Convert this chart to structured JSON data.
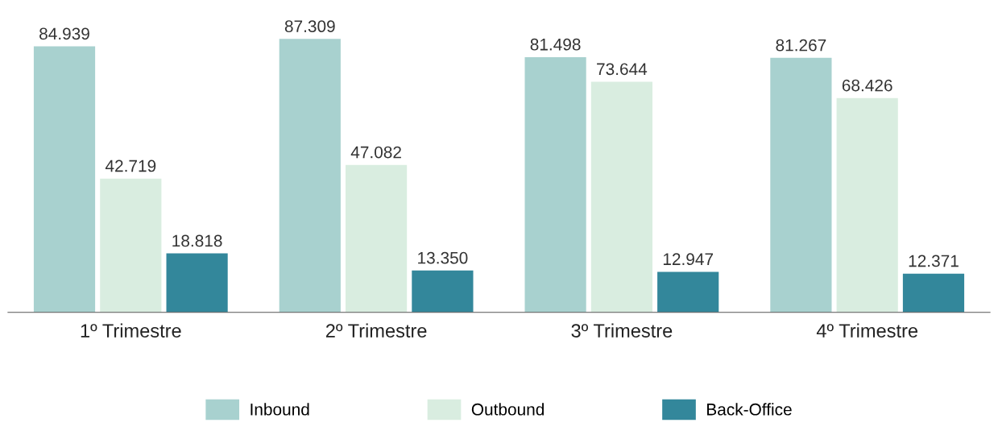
{
  "chart_data": {
    "type": "bar",
    "categories": [
      "1º Trimestre",
      "2º Trimestre",
      "3º Trimestre",
      "4º Trimestre"
    ],
    "series": [
      {
        "name": "Inbound",
        "color": "#a8d1cf",
        "values": [
          84939,
          87309,
          81498,
          81267
        ],
        "value_labels": [
          "84.939",
          "87.309",
          "81.498",
          "81.267"
        ]
      },
      {
        "name": "Outbound",
        "color": "#d9ede0",
        "values": [
          42719,
          47082,
          73644,
          68426
        ],
        "value_labels": [
          "42.719",
          "47.082",
          "73.644",
          "68.426"
        ]
      },
      {
        "name": "Back-Office",
        "color": "#33879b",
        "values": [
          18818,
          13350,
          12947,
          12371
        ],
        "value_labels": [
          "18.818",
          "13.350",
          "12.947",
          "12.371"
        ]
      }
    ],
    "legend": "bottom",
    "grid": false,
    "tick_labels": "x"
  }
}
